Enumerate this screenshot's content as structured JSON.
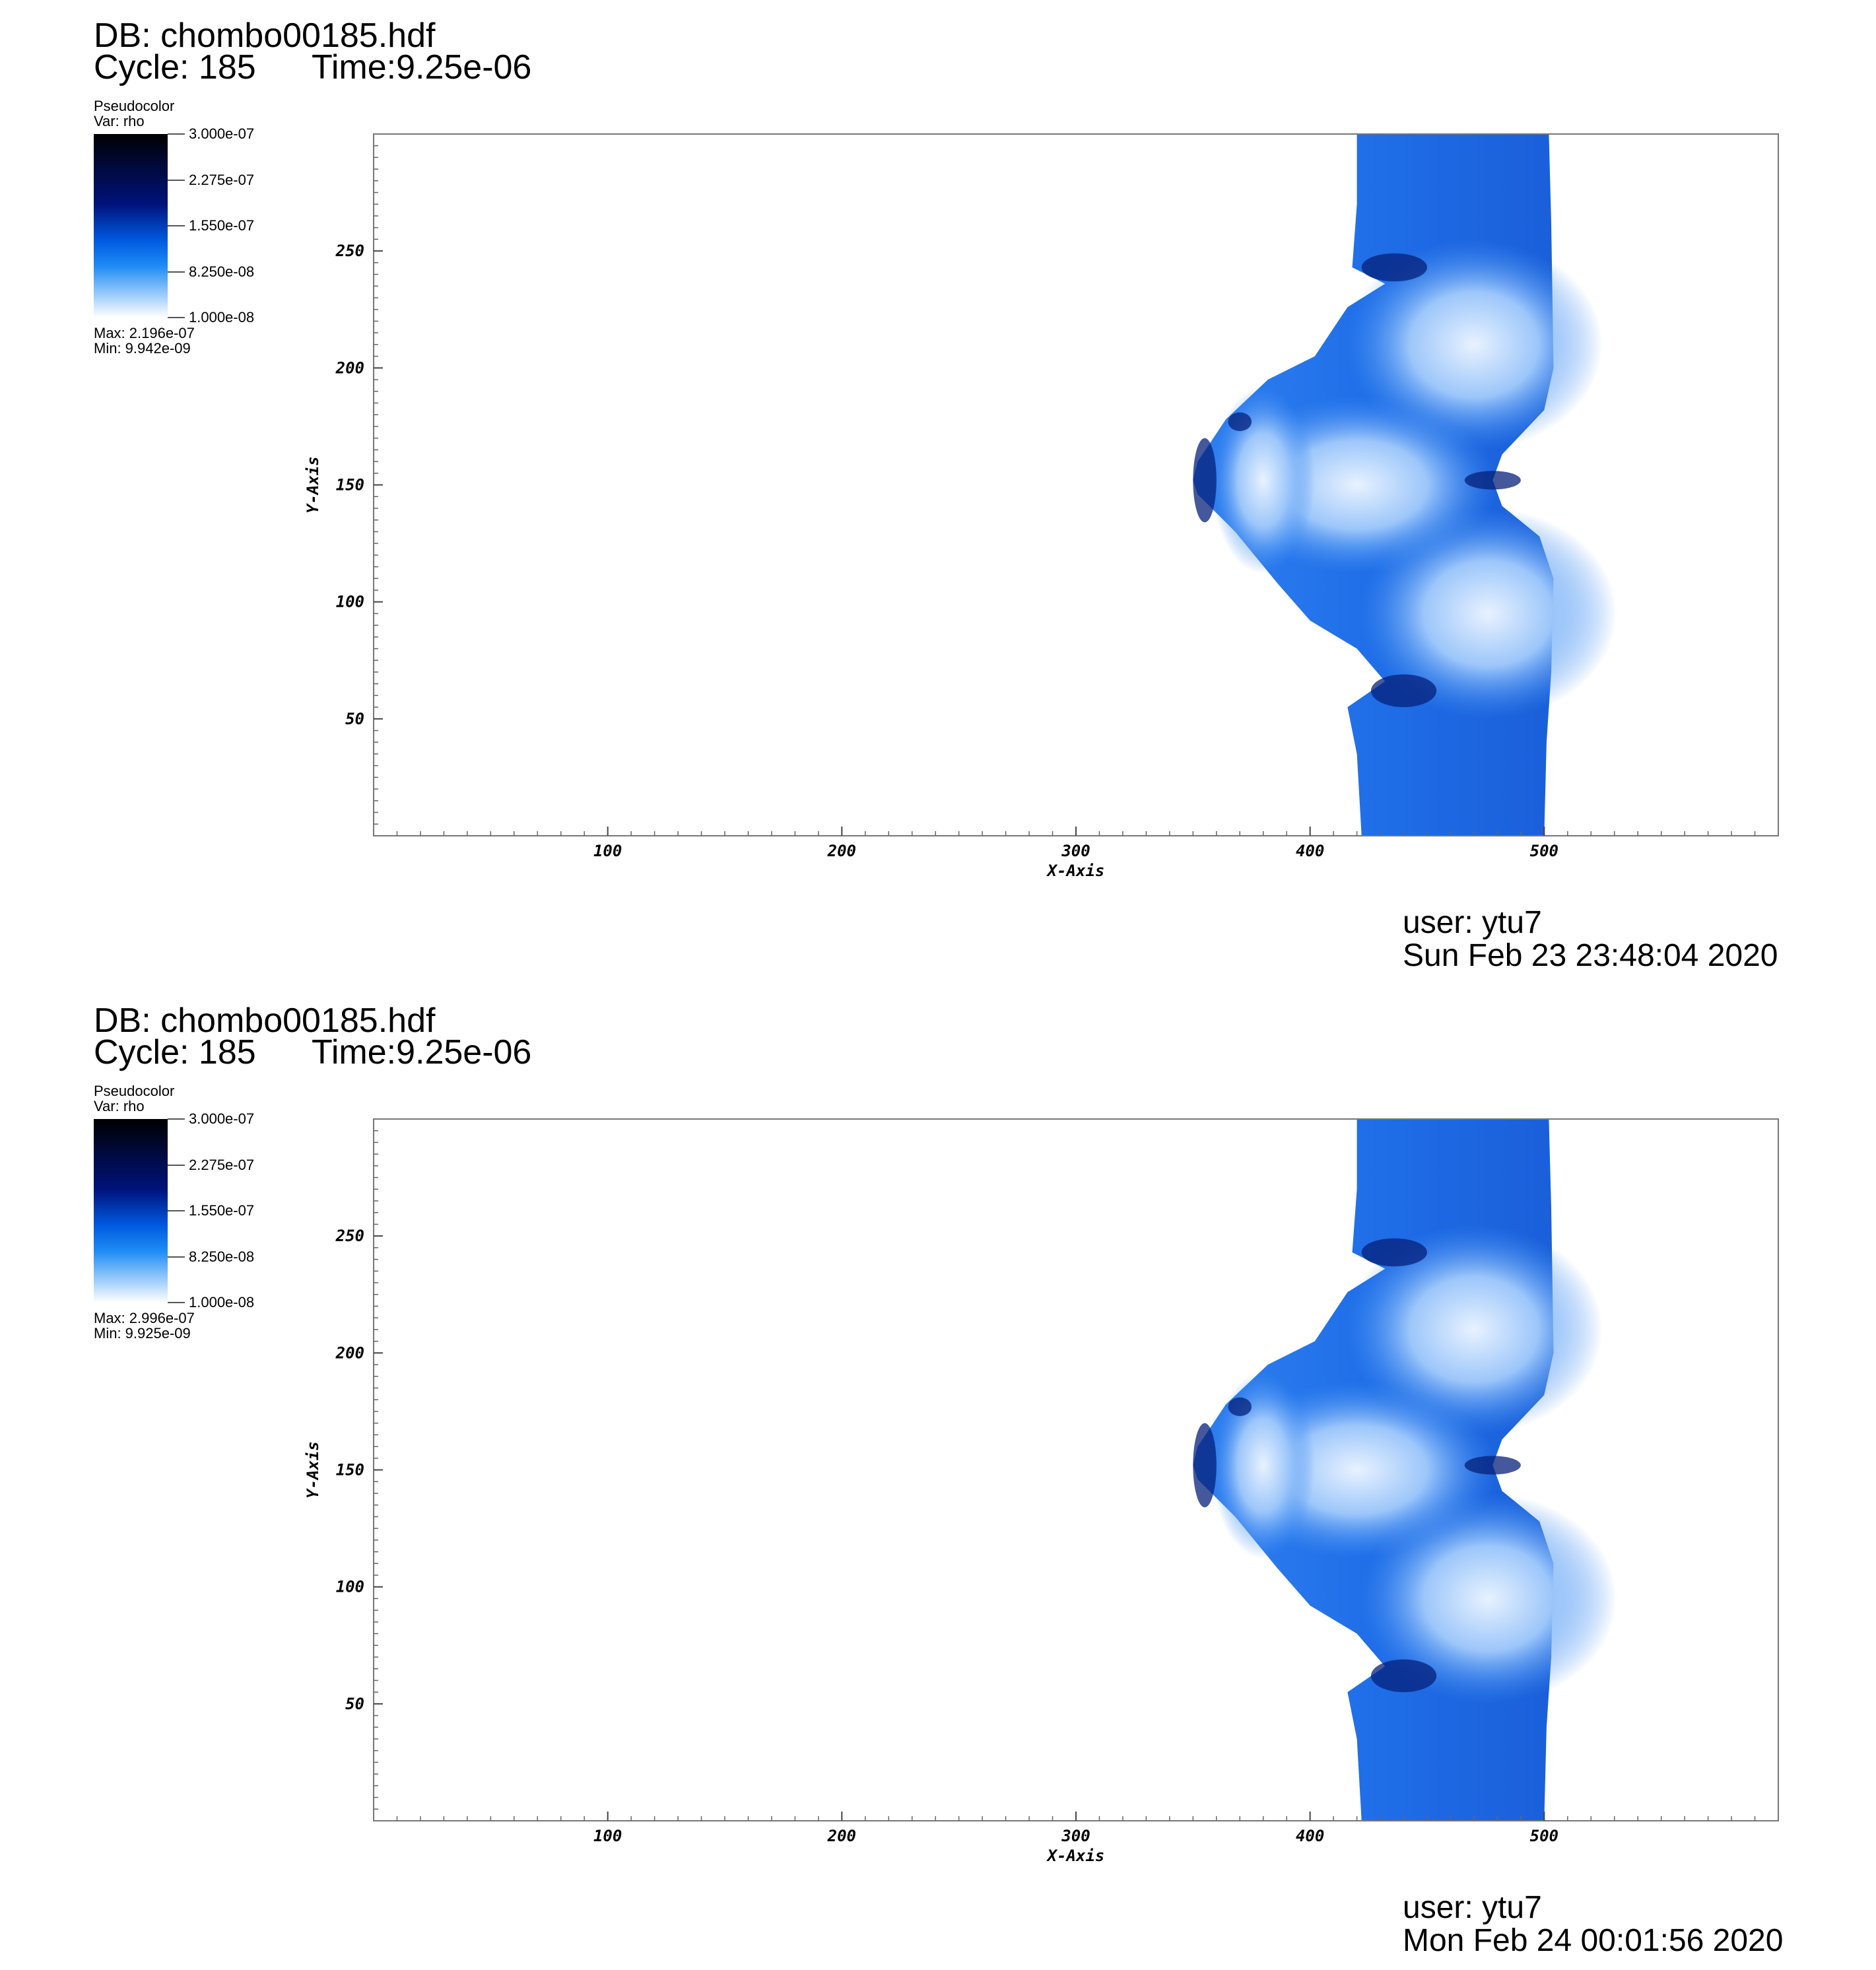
{
  "panels": [
    {
      "db_label": "DB: chombo00185.hdf",
      "cycle_label": "Cycle: 185",
      "time_label": "Time:9.25e-06",
      "legend": {
        "plot_type": "Pseudocolor",
        "variable": "Var: rho",
        "ticks": [
          "3.000e-07",
          "2.275e-07",
          "1.550e-07",
          "8.250e-08",
          "1.000e-08"
        ],
        "max_label": "Max:  2.196e-07",
        "min_label": "Min:  9.942e-09"
      },
      "user_label": "user: ytu7",
      "date_label": "Sun Feb 23 23:48:04 2020"
    },
    {
      "db_label": "DB: chombo00185.hdf",
      "cycle_label": "Cycle: 185",
      "time_label": "Time:9.25e-06",
      "legend": {
        "plot_type": "Pseudocolor",
        "variable": "Var: rho",
        "ticks": [
          "3.000e-07",
          "2.275e-07",
          "1.550e-07",
          "8.250e-08",
          "1.000e-08"
        ],
        "max_label": "Max:  2.996e-07",
        "min_label": "Min:  9.925e-09"
      },
      "user_label": "user: ytu7",
      "date_label": "Mon Feb 24 00:01:56 2020"
    }
  ],
  "chart_data": [
    {
      "type": "heatmap",
      "variable": "rho",
      "xlabel": "X-Axis",
      "ylabel": "Y-Axis",
      "xlim": [
        0,
        600
      ],
      "ylim": [
        0,
        300
      ],
      "x_ticks": [
        100,
        200,
        300,
        400,
        500
      ],
      "y_ticks": [
        50,
        100,
        150,
        200,
        250
      ],
      "color_range": [
        1e-08,
        3e-07
      ],
      "data_max": 2.196e-07,
      "data_min": 9.942e-09
    },
    {
      "type": "heatmap",
      "variable": "rho",
      "xlabel": "X-Axis",
      "ylabel": "Y-Axis",
      "xlim": [
        0,
        600
      ],
      "ylim": [
        0,
        300
      ],
      "x_ticks": [
        100,
        200,
        300,
        400,
        500
      ],
      "y_ticks": [
        50,
        100,
        150,
        200,
        250
      ],
      "color_range": [
        1e-08,
        3e-07
      ],
      "data_max": 2.996e-07,
      "data_min": 9.925e-09
    }
  ]
}
